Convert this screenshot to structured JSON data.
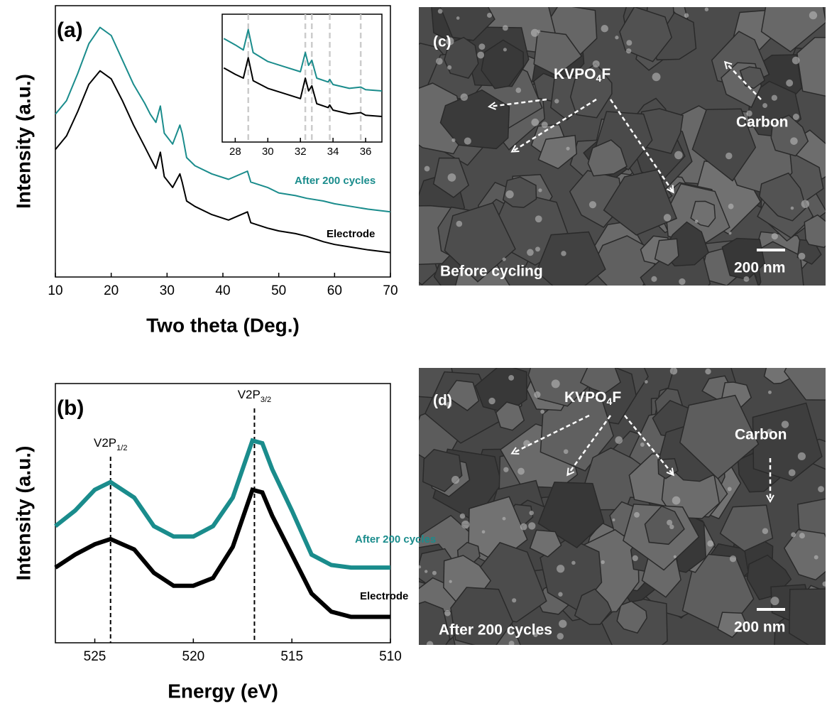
{
  "chart_data": [
    {
      "type": "line",
      "panel_label": "(a)",
      "x_label": "Two theta (Deg.)",
      "y_label": "Intensity (a.u.)",
      "x": [
        10,
        12,
        14,
        16,
        18,
        20,
        22,
        24,
        26,
        27,
        28,
        28.8,
        29.5,
        31,
        32.3,
        32.7,
        33.5,
        35,
        38,
        41,
        44.4,
        45,
        48,
        50,
        53,
        55,
        58,
        60,
        63,
        66,
        70
      ],
      "series": [
        {
          "name": "After 200 cycles",
          "color": "#1a8c8c",
          "values": [
            60,
            65,
            75,
            86,
            92,
            89,
            80,
            71,
            64,
            60,
            57,
            63,
            53,
            49,
            56,
            53,
            44,
            41,
            38,
            36,
            39,
            35,
            33,
            31,
            30,
            29,
            28,
            27,
            26,
            25,
            24
          ]
        },
        {
          "name": "Electrode",
          "color": "#000000",
          "values": [
            47,
            52,
            61,
            71,
            76,
            73,
            65,
            56,
            48,
            44,
            40,
            46,
            37,
            33,
            38,
            35,
            28,
            26,
            23,
            21,
            24,
            20,
            18,
            17,
            16,
            15,
            13,
            12,
            11,
            10,
            9
          ]
        }
      ],
      "xlim": [
        10,
        70
      ],
      "xticks": [
        10,
        20,
        30,
        40,
        50,
        60,
        70
      ],
      "ylim": [
        0,
        100
      ]
    },
    {
      "type": "line",
      "x": [
        27.3,
        28,
        28.5,
        28.8,
        29.1,
        30,
        31,
        32,
        32.3,
        32.5,
        32.7,
        33,
        33.7,
        33.8,
        34,
        35,
        35.7,
        36,
        37
      ],
      "series": [
        {
          "color": "#1a8c8c",
          "values": [
            81,
            76,
            72,
            88,
            70,
            63,
            59,
            55,
            70,
            60,
            64,
            50,
            47,
            49,
            45,
            42,
            43,
            41,
            40
          ]
        },
        {
          "color": "#000000",
          "values": [
            58,
            53,
            50,
            66,
            48,
            42,
            38,
            34,
            50,
            40,
            44,
            30,
            27,
            29,
            25,
            22,
            23,
            21,
            20
          ]
        }
      ],
      "reference_lines": [
        28.8,
        32.3,
        32.7,
        33.8,
        35.7
      ],
      "xlim": [
        27.2,
        37
      ],
      "xticks": [
        28,
        30,
        32,
        34,
        36
      ],
      "ylim": [
        0,
        100
      ]
    },
    {
      "type": "line",
      "panel_label": "(b)",
      "x_label": "Energy (eV)",
      "y_label": "Intensity (a.u.)",
      "x": [
        527,
        526,
        525,
        524.2,
        523,
        522,
        521,
        520,
        519,
        518,
        517,
        516.5,
        516,
        515,
        514,
        513,
        512,
        511,
        510
      ],
      "series": [
        {
          "name": "After 200 cycles",
          "color": "#1a8c8c",
          "values": [
            45,
            51,
            59,
            62,
            56,
            45,
            41,
            41,
            45,
            56,
            78,
            77,
            67,
            51,
            34,
            30,
            29,
            29,
            29
          ]
        },
        {
          "name": "Electrode",
          "color": "#000000",
          "values": [
            29,
            34,
            38,
            40,
            36,
            27,
            22,
            22,
            25,
            37,
            59,
            58,
            49,
            34,
            19,
            12,
            10,
            10,
            10
          ]
        }
      ],
      "annotations": [
        {
          "text": "V2P",
          "subscript": "1/2",
          "x": 524.2
        },
        {
          "text": "V2P",
          "subscript": "3/2",
          "x": 516.9
        }
      ],
      "xlim": [
        527,
        510
      ],
      "xticks": [
        525,
        520,
        515,
        510
      ],
      "ylim": [
        0,
        100
      ]
    }
  ],
  "images": [
    {
      "panel_label": "(c)",
      "material": {
        "text": "KVPO",
        "subscript": "4",
        "tail": "F"
      },
      "carbon": "Carbon",
      "caption": "Before cycling",
      "scale_bar": "200 nm"
    },
    {
      "panel_label": "(d)",
      "material": {
        "text": "KVPO",
        "subscript": "4",
        "tail": "F"
      },
      "carbon": "Carbon",
      "caption": "After 200 cycles",
      "scale_bar": "200 nm"
    }
  ]
}
